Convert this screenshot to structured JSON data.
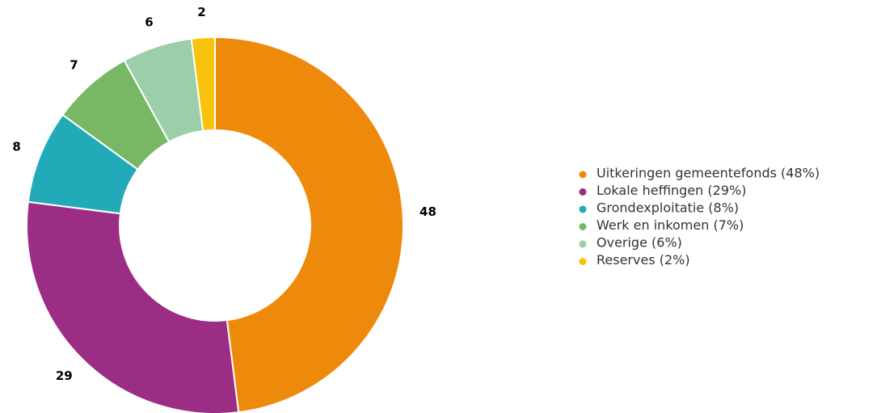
{
  "chart_data": {
    "type": "pie",
    "donut": true,
    "categories": [
      "Uitkeringen gemeentefonds (48%)",
      "Lokale heffingen (29%)",
      "Grondexploitatie (8%)",
      "Werk en inkomen (7%)",
      "Overige (6%)",
      "Reserves (2%)"
    ],
    "values": [
      48,
      29,
      8,
      7,
      6,
      2
    ],
    "colors": [
      "#ee8a0b",
      "#9b2d85",
      "#22aab8",
      "#78b865",
      "#9dceaa",
      "#f8c20d"
    ],
    "legend": "right"
  }
}
